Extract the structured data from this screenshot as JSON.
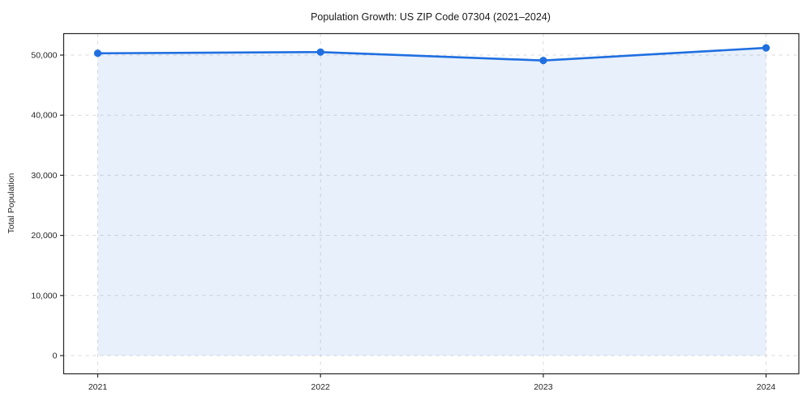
{
  "chart_data": {
    "type": "line",
    "title": "Population Growth: US ZIP Code 07304 (2021–2024)",
    "xlabel": "",
    "ylabel": "Total Population",
    "x": [
      "2021",
      "2022",
      "2023",
      "2024"
    ],
    "series": [
      {
        "name": "Total Population",
        "values": [
          50300,
          50500,
          49100,
          51200
        ]
      }
    ],
    "yticks": [
      0,
      10000,
      20000,
      30000,
      40000,
      50000
    ],
    "ytick_labels": [
      "0",
      "10,000",
      "20,000",
      "30,000",
      "40,000",
      "50,000"
    ],
    "xtick_labels": [
      "2021",
      "2022",
      "2023",
      "2024"
    ],
    "ylim": [
      -3100,
      53650
    ],
    "grid": true,
    "grid_style": "dashed",
    "legend": "none",
    "marker": "circle",
    "area_fill": true,
    "colors": {
      "line": "#1f6fe0",
      "marker": "#1f6fe0",
      "fill_tint": "#e9f0fc",
      "fill_alpha": "0.10",
      "grid": "#d9d9d9",
      "spine": "#262626",
      "text": "#262626",
      "title": "#1a1a1a",
      "background": "#ffffff"
    }
  }
}
